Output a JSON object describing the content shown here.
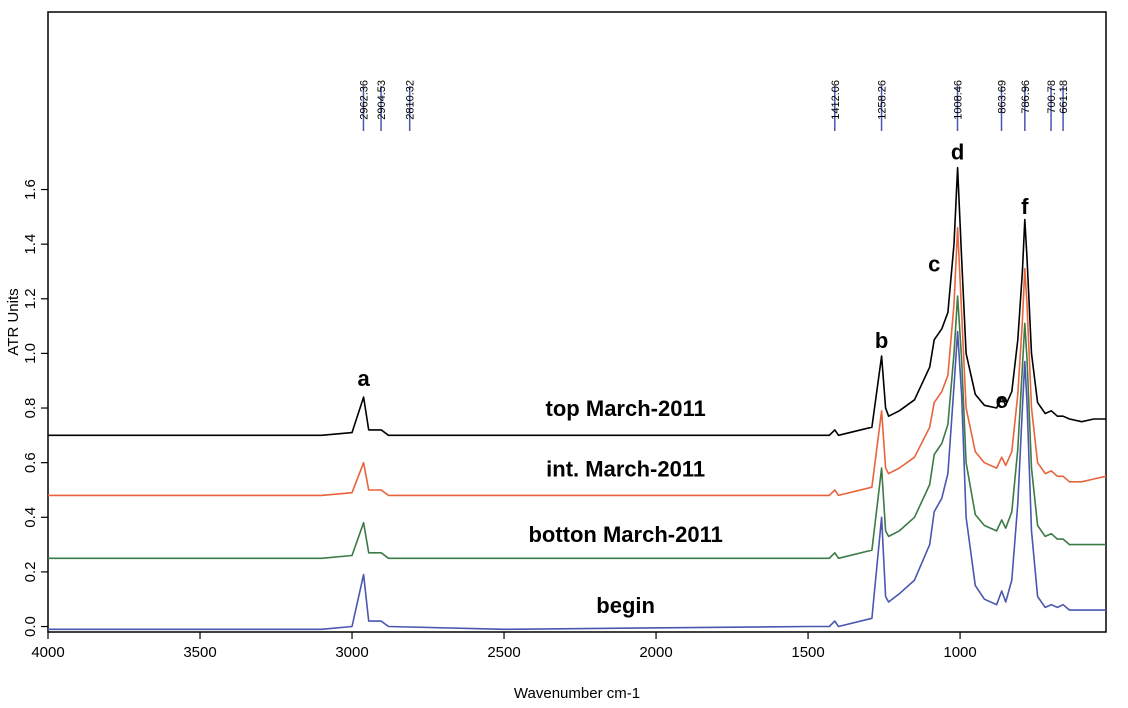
{
  "chart_data": {
    "type": "line",
    "xlabel": "Wavenumber cm-1",
    "ylabel": "ATR Units",
    "xlim": [
      4000,
      520
    ],
    "ylim": [
      -0.02,
      2.25
    ],
    "x_reversed": true,
    "grid": false,
    "x_ticks": [
      4000,
      3500,
      3000,
      2500,
      2000,
      1500,
      1000
    ],
    "y_ticks": [
      0.0,
      0.2,
      0.4,
      0.6,
      0.8,
      1.0,
      1.2,
      1.4,
      1.6
    ],
    "y_tick_labels": [
      "0.0",
      "0.2",
      "0.4",
      "0.6",
      "0.8",
      "1.0",
      "1.2",
      "1.4",
      "1.6"
    ],
    "peak_markers": [
      {
        "x": 2962.36,
        "label": "2962.36"
      },
      {
        "x": 2904.53,
        "label": "2904.53"
      },
      {
        "x": 2810.32,
        "label": "2810.32"
      },
      {
        "x": 1412.06,
        "label": "1412.06"
      },
      {
        "x": 1258.26,
        "label": "1258.26"
      },
      {
        "x": 1008.46,
        "label": "1008.46"
      },
      {
        "x": 863.69,
        "label": "863.69"
      },
      {
        "x": 786.96,
        "label": "786.96"
      },
      {
        "x": 700.78,
        "label": "700.78"
      },
      {
        "x": 661.18,
        "label": "661.18"
      }
    ],
    "peak_letters": [
      {
        "label": "a",
        "x": 2962,
        "y": 0.88
      },
      {
        "label": "b",
        "x": 1258,
        "y": 1.02
      },
      {
        "label": "c",
        "x": 1085,
        "y": 1.3
      },
      {
        "label": "d",
        "x": 1008,
        "y": 1.71
      },
      {
        "label": "e",
        "x": 863,
        "y": 0.8
      },
      {
        "label": "f",
        "x": 787,
        "y": 1.51
      }
    ],
    "series": [
      {
        "name": "top March-2011",
        "color": "#000000",
        "label_pos": {
          "x": 2100,
          "y": 0.77
        },
        "points": [
          [
            4000,
            0.7
          ],
          [
            3500,
            0.7
          ],
          [
            3100,
            0.7
          ],
          [
            3000,
            0.71
          ],
          [
            2962,
            0.84
          ],
          [
            2945,
            0.72
          ],
          [
            2904,
            0.72
          ],
          [
            2880,
            0.7
          ],
          [
            2500,
            0.7
          ],
          [
            1500,
            0.7
          ],
          [
            1430,
            0.7
          ],
          [
            1412,
            0.72
          ],
          [
            1400,
            0.7
          ],
          [
            1290,
            0.73
          ],
          [
            1258,
            0.99
          ],
          [
            1245,
            0.8
          ],
          [
            1235,
            0.77
          ],
          [
            1200,
            0.79
          ],
          [
            1150,
            0.83
          ],
          [
            1100,
            0.95
          ],
          [
            1085,
            1.05
          ],
          [
            1060,
            1.09
          ],
          [
            1040,
            1.15
          ],
          [
            1020,
            1.4
          ],
          [
            1008,
            1.68
          ],
          [
            995,
            1.35
          ],
          [
            980,
            1.0
          ],
          [
            950,
            0.85
          ],
          [
            920,
            0.81
          ],
          [
            880,
            0.8
          ],
          [
            863,
            0.84
          ],
          [
            850,
            0.81
          ],
          [
            830,
            0.86
          ],
          [
            810,
            1.05
          ],
          [
            795,
            1.3
          ],
          [
            787,
            1.49
          ],
          [
            780,
            1.35
          ],
          [
            765,
            1.0
          ],
          [
            745,
            0.82
          ],
          [
            720,
            0.78
          ],
          [
            700,
            0.79
          ],
          [
            680,
            0.77
          ],
          [
            661,
            0.77
          ],
          [
            640,
            0.76
          ],
          [
            600,
            0.75
          ],
          [
            560,
            0.76
          ],
          [
            520,
            0.76
          ]
        ]
      },
      {
        "name": "int. March-2011",
        "color": "#e8643c",
        "label_pos": {
          "x": 2100,
          "y": 0.55
        },
        "points": [
          [
            4000,
            0.48
          ],
          [
            3500,
            0.48
          ],
          [
            3100,
            0.48
          ],
          [
            3000,
            0.49
          ],
          [
            2962,
            0.6
          ],
          [
            2945,
            0.5
          ],
          [
            2904,
            0.5
          ],
          [
            2880,
            0.48
          ],
          [
            2500,
            0.48
          ],
          [
            1500,
            0.48
          ],
          [
            1430,
            0.48
          ],
          [
            1412,
            0.5
          ],
          [
            1400,
            0.48
          ],
          [
            1290,
            0.51
          ],
          [
            1258,
            0.79
          ],
          [
            1245,
            0.58
          ],
          [
            1235,
            0.56
          ],
          [
            1200,
            0.58
          ],
          [
            1150,
            0.62
          ],
          [
            1100,
            0.73
          ],
          [
            1085,
            0.82
          ],
          [
            1060,
            0.86
          ],
          [
            1040,
            0.92
          ],
          [
            1020,
            1.18
          ],
          [
            1008,
            1.46
          ],
          [
            995,
            1.15
          ],
          [
            980,
            0.8
          ],
          [
            950,
            0.64
          ],
          [
            920,
            0.6
          ],
          [
            880,
            0.58
          ],
          [
            863,
            0.62
          ],
          [
            850,
            0.59
          ],
          [
            830,
            0.64
          ],
          [
            810,
            0.85
          ],
          [
            795,
            1.12
          ],
          [
            787,
            1.31
          ],
          [
            780,
            1.18
          ],
          [
            765,
            0.8
          ],
          [
            745,
            0.6
          ],
          [
            720,
            0.56
          ],
          [
            700,
            0.57
          ],
          [
            680,
            0.55
          ],
          [
            661,
            0.55
          ],
          [
            640,
            0.53
          ],
          [
            600,
            0.53
          ],
          [
            560,
            0.54
          ],
          [
            520,
            0.55
          ]
        ]
      },
      {
        "name": "botton March-2011",
        "color": "#3c7a46",
        "label_pos": {
          "x": 2100,
          "y": 0.31
        },
        "points": [
          [
            4000,
            0.25
          ],
          [
            3500,
            0.25
          ],
          [
            3100,
            0.25
          ],
          [
            3000,
            0.26
          ],
          [
            2962,
            0.38
          ],
          [
            2945,
            0.27
          ],
          [
            2904,
            0.27
          ],
          [
            2880,
            0.25
          ],
          [
            2500,
            0.25
          ],
          [
            1500,
            0.25
          ],
          [
            1430,
            0.25
          ],
          [
            1412,
            0.27
          ],
          [
            1400,
            0.25
          ],
          [
            1290,
            0.28
          ],
          [
            1258,
            0.58
          ],
          [
            1245,
            0.35
          ],
          [
            1235,
            0.33
          ],
          [
            1200,
            0.35
          ],
          [
            1150,
            0.4
          ],
          [
            1100,
            0.52
          ],
          [
            1085,
            0.63
          ],
          [
            1060,
            0.67
          ],
          [
            1040,
            0.74
          ],
          [
            1020,
            1.0
          ],
          [
            1008,
            1.21
          ],
          [
            995,
            0.98
          ],
          [
            980,
            0.6
          ],
          [
            950,
            0.41
          ],
          [
            920,
            0.37
          ],
          [
            880,
            0.35
          ],
          [
            863,
            0.39
          ],
          [
            850,
            0.36
          ],
          [
            830,
            0.42
          ],
          [
            810,
            0.65
          ],
          [
            795,
            0.95
          ],
          [
            787,
            1.11
          ],
          [
            780,
            0.98
          ],
          [
            765,
            0.58
          ],
          [
            745,
            0.37
          ],
          [
            720,
            0.33
          ],
          [
            700,
            0.34
          ],
          [
            680,
            0.32
          ],
          [
            661,
            0.32
          ],
          [
            640,
            0.3
          ],
          [
            600,
            0.3
          ],
          [
            560,
            0.3
          ],
          [
            520,
            0.3
          ]
        ]
      },
      {
        "name": "begin",
        "color": "#4a56b0",
        "label_pos": {
          "x": 2100,
          "y": 0.05
        },
        "points": [
          [
            4000,
            -0.01
          ],
          [
            3500,
            -0.01
          ],
          [
            3100,
            -0.01
          ],
          [
            3000,
            0.0
          ],
          [
            2962,
            0.19
          ],
          [
            2945,
            0.02
          ],
          [
            2904,
            0.02
          ],
          [
            2880,
            0.0
          ],
          [
            2500,
            -0.01
          ],
          [
            1500,
            0.0
          ],
          [
            1430,
            0.0
          ],
          [
            1412,
            0.02
          ],
          [
            1400,
            0.0
          ],
          [
            1290,
            0.03
          ],
          [
            1258,
            0.4
          ],
          [
            1245,
            0.11
          ],
          [
            1235,
            0.09
          ],
          [
            1200,
            0.12
          ],
          [
            1150,
            0.17
          ],
          [
            1100,
            0.3
          ],
          [
            1085,
            0.42
          ],
          [
            1060,
            0.47
          ],
          [
            1040,
            0.56
          ],
          [
            1020,
            0.88
          ],
          [
            1008,
            1.08
          ],
          [
            995,
            0.85
          ],
          [
            980,
            0.4
          ],
          [
            950,
            0.15
          ],
          [
            920,
            0.1
          ],
          [
            880,
            0.08
          ],
          [
            863,
            0.13
          ],
          [
            850,
            0.09
          ],
          [
            830,
            0.17
          ],
          [
            810,
            0.45
          ],
          [
            795,
            0.8
          ],
          [
            787,
            0.97
          ],
          [
            780,
            0.82
          ],
          [
            765,
            0.35
          ],
          [
            745,
            0.11
          ],
          [
            720,
            0.07
          ],
          [
            700,
            0.08
          ],
          [
            680,
            0.07
          ],
          [
            661,
            0.08
          ],
          [
            640,
            0.06
          ],
          [
            600,
            0.06
          ],
          [
            560,
            0.06
          ],
          [
            520,
            0.06
          ]
        ]
      }
    ]
  }
}
